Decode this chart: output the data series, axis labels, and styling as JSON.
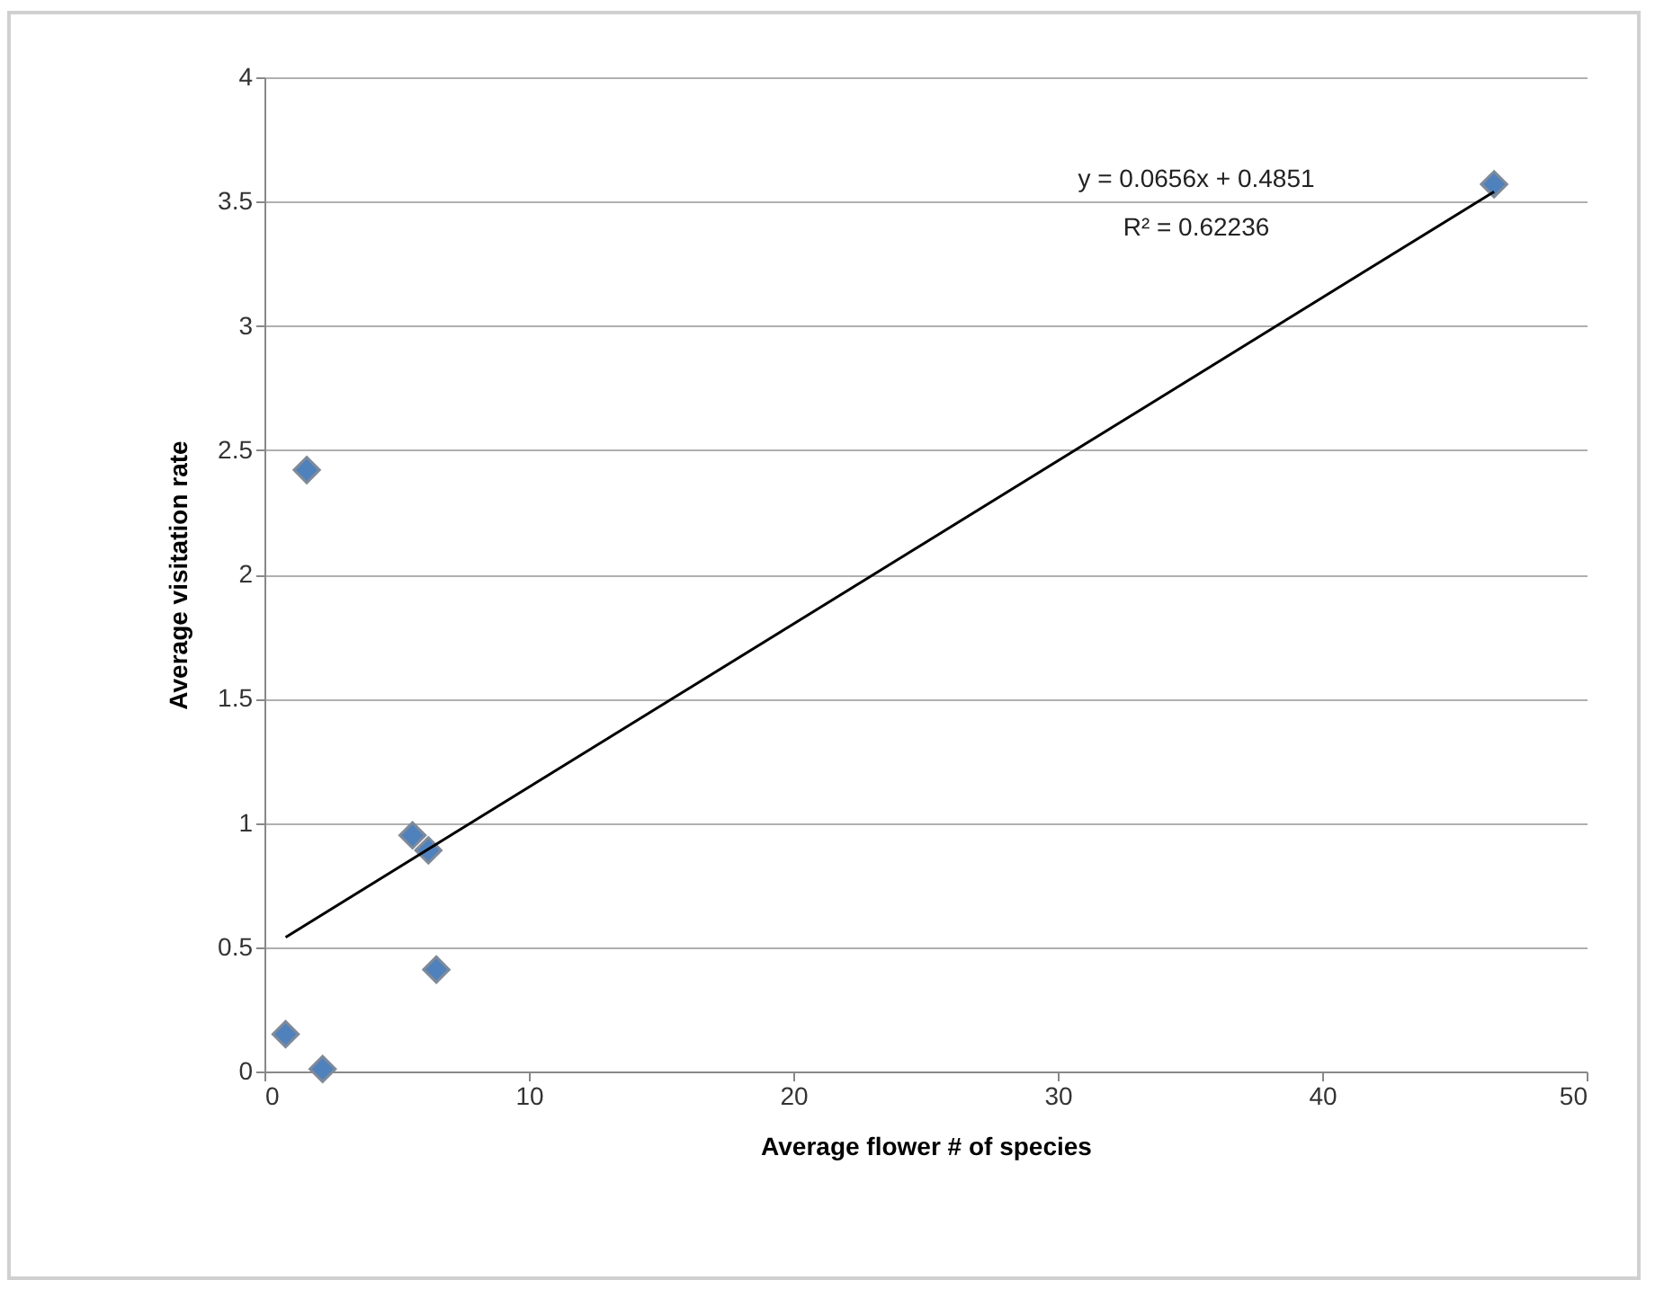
{
  "chart_data": {
    "type": "scatter",
    "xlabel": "Average flower # of species",
    "ylabel": "Average visitation rate",
    "xlim": [
      0,
      50
    ],
    "xticks": [
      0,
      10,
      20,
      30,
      40,
      50
    ],
    "ylim": [
      0,
      4
    ],
    "yticks": [
      0,
      0.5,
      1,
      1.5,
      2,
      2.5,
      3,
      3.5,
      4
    ],
    "grid": "y",
    "annotations": [
      "y = 0.0656x + 0.4851",
      "R² = 0.62236"
    ],
    "series": [
      {
        "color": "#4f81bd",
        "marker": "diamond",
        "x": [
          1.6,
          46.5,
          5.6,
          6.2,
          6.5,
          0.8,
          2.2
        ],
        "values": [
          2.42,
          3.57,
          0.95,
          0.89,
          0.41,
          0.15,
          0.01
        ]
      },
      {
        "type": "line",
        "color": "#000000",
        "x": [
          0.8,
          46.5
        ],
        "values": [
          0.54,
          3.54
        ]
      }
    ]
  }
}
